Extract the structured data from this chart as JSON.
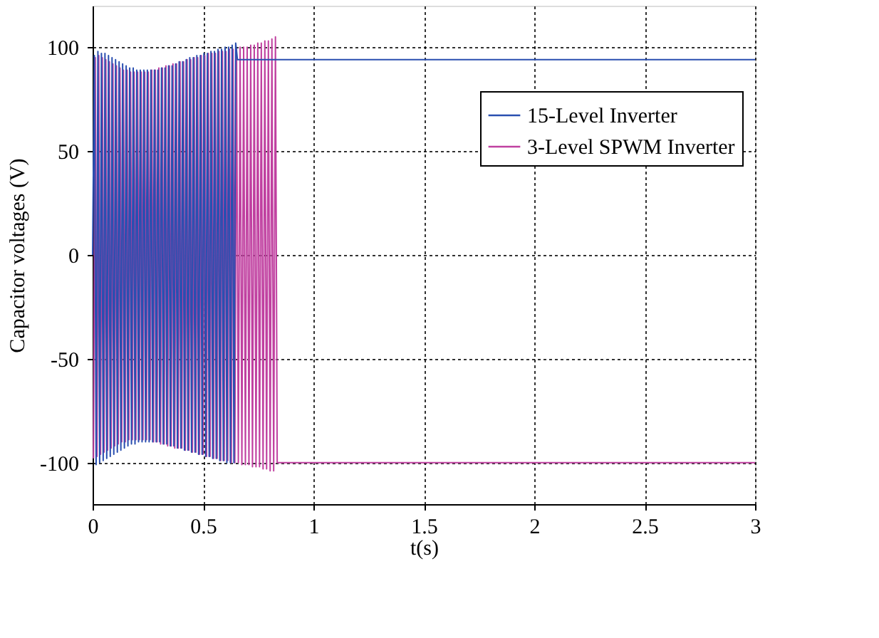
{
  "chart_data": {
    "type": "line",
    "xlabel": "t(s)",
    "ylabel": "Capacitor voltages (V)",
    "xlim": [
      0,
      3
    ],
    "xticks": [
      0,
      0.5,
      1,
      1.5,
      2,
      2.5,
      3
    ],
    "ylim": [
      -120,
      120
    ],
    "yticks": [
      -100,
      -50,
      0,
      50,
      100
    ],
    "grid": true,
    "legend": "top right",
    "line_style": "solid",
    "marker": "none",
    "series": [
      {
        "name": "15-Level Inverter",
        "color": "#2a4fb0",
        "x": [
          0,
          0.008,
          0.016,
          0.024,
          0.032,
          0.04,
          0.048,
          0.056,
          0.064,
          0.072,
          0.08,
          0.088,
          0.096,
          0.104,
          0.112,
          0.12,
          0.128,
          0.136,
          0.144,
          0.152,
          0.16,
          0.168,
          0.176,
          0.184,
          0.192,
          0.2,
          0.208,
          0.216,
          0.224,
          0.232,
          0.24,
          0.248,
          0.256,
          0.264,
          0.272,
          0.28,
          0.288,
          0.296,
          0.304,
          0.312,
          0.32,
          0.328,
          0.336,
          0.344,
          0.352,
          0.36,
          0.368,
          0.376,
          0.384,
          0.392,
          0.4,
          0.408,
          0.416,
          0.424,
          0.432,
          0.44,
          0.448,
          0.456,
          0.464,
          0.472,
          0.48,
          0.488,
          0.496,
          0.504,
          0.512,
          0.52,
          0.528,
          0.536,
          0.544,
          0.552,
          0.56,
          0.568,
          0.576,
          0.584,
          0.592,
          0.6,
          0.608,
          0.616,
          0.624,
          0.632,
          0.64,
          0.648,
          0.656,
          3
        ],
        "values": [
          0,
          96,
          -101,
          98,
          -100,
          97,
          -99,
          97,
          -98,
          96,
          -97,
          95,
          -96,
          94,
          -95,
          93,
          -94,
          92,
          -93,
          91,
          -92,
          90,
          -91,
          90,
          -91,
          89,
          -90,
          89,
          -90,
          89,
          -90,
          89,
          -90,
          89,
          -90,
          89,
          -90,
          89,
          -90,
          90,
          -91,
          90,
          -91,
          91,
          -92,
          91,
          -92,
          92,
          -93,
          93,
          -93,
          93,
          -94,
          94,
          -94,
          95,
          -95,
          95,
          -95,
          96,
          -96,
          96,
          -96,
          97,
          -97,
          97,
          -97,
          98,
          -98,
          98,
          -98,
          99,
          -99,
          99,
          -99,
          100,
          -100,
          100,
          -100,
          101,
          -100,
          102,
          94,
          94
        ]
      },
      {
        "name": "3-Level SPWM Inverter",
        "color": "#c040a0",
        "x": [
          0.004,
          0.012,
          0.02,
          0.028,
          0.036,
          0.044,
          0.052,
          0.06,
          0.068,
          0.076,
          0.084,
          0.092,
          0.1,
          0.108,
          0.116,
          0.124,
          0.132,
          0.14,
          0.148,
          0.156,
          0.164,
          0.172,
          0.18,
          0.188,
          0.196,
          0.204,
          0.212,
          0.22,
          0.228,
          0.236,
          0.244,
          0.252,
          0.26,
          0.268,
          0.276,
          0.284,
          0.292,
          0.3,
          0.308,
          0.316,
          0.324,
          0.332,
          0.34,
          0.348,
          0.356,
          0.364,
          0.372,
          0.38,
          0.388,
          0.396,
          0.404,
          0.412,
          0.42,
          0.428,
          0.436,
          0.444,
          0.452,
          0.46,
          0.468,
          0.476,
          0.484,
          0.492,
          0.5,
          0.508,
          0.516,
          0.524,
          0.532,
          0.54,
          0.548,
          0.556,
          0.564,
          0.572,
          0.58,
          0.588,
          0.596,
          0.604,
          0.612,
          0.62,
          0.628,
          0.636,
          0.644,
          0.652,
          0.66,
          0.668,
          0.676,
          0.684,
          0.692,
          0.7,
          0.708,
          0.716,
          0.724,
          0.732,
          0.74,
          0.748,
          0.756,
          0.764,
          0.772,
          0.78,
          0.788,
          0.796,
          0.804,
          0.812,
          0.82,
          0.828,
          0.836,
          3
        ],
        "values": [
          -98,
          95,
          -97,
          96,
          -96,
          95,
          -95,
          94,
          -94,
          93,
          -93,
          92,
          -92,
          91,
          -91,
          90,
          -90,
          89,
          -90,
          89,
          -89,
          88,
          -89,
          88,
          -89,
          88,
          -89,
          88,
          -89,
          88,
          -89,
          88,
          -89,
          89,
          -90,
          89,
          -90,
          90,
          -91,
          90,
          -91,
          91,
          -92,
          91,
          -92,
          92,
          -93,
          92,
          -93,
          93,
          -93,
          93,
          -94,
          94,
          -94,
          94,
          -95,
          95,
          -95,
          95,
          -96,
          96,
          -96,
          96,
          -97,
          97,
          -97,
          97,
          -98,
          97,
          -98,
          98,
          -99,
          98,
          -99,
          98,
          -99,
          99,
          -100,
          99,
          -100,
          99,
          -100,
          100,
          -101,
          100,
          -101,
          100,
          -101,
          101,
          -102,
          101,
          -102,
          102,
          -102,
          102,
          -103,
          103,
          -103,
          103,
          -104,
          104,
          -104,
          105,
          -100,
          -100
        ]
      }
    ]
  }
}
